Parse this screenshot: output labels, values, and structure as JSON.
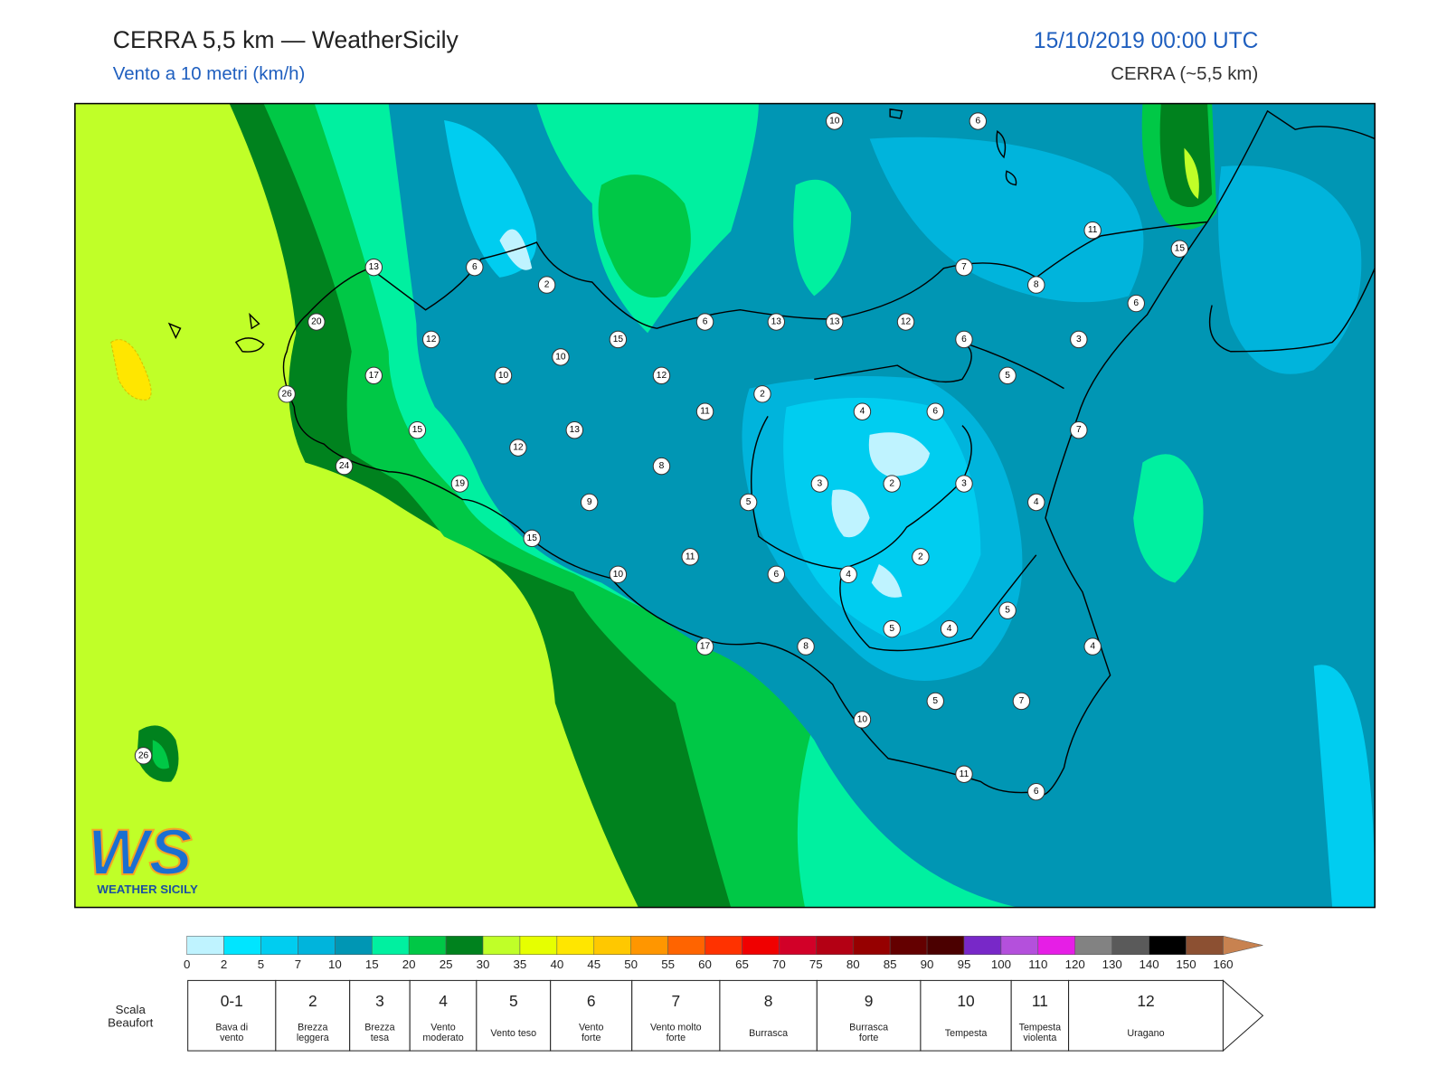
{
  "header": {
    "title": "CERRA 5,5 km — WeatherSicily",
    "subtitle": "Vento a 10 metri (km/h)",
    "datetime": "15/10/2019 00:00 UTC",
    "model": "CERRA (~5,5 km)"
  },
  "stations": [
    10,
    6,
    13,
    6,
    2,
    11,
    15,
    7,
    8,
    6,
    20,
    6,
    13,
    13,
    12,
    12,
    15,
    10,
    6,
    3,
    17,
    10,
    12,
    5,
    26,
    2,
    11,
    4,
    6,
    15,
    13,
    7,
    12,
    24,
    8,
    19,
    3,
    2,
    3,
    9,
    5,
    4,
    15,
    11,
    2,
    10,
    6,
    4,
    5,
    5,
    4,
    17,
    8,
    4,
    5,
    7,
    10,
    11,
    6,
    26
  ],
  "colorbar": {
    "ticks": [
      0,
      2,
      5,
      7,
      10,
      15,
      20,
      25,
      30,
      35,
      40,
      45,
      50,
      55,
      60,
      65,
      70,
      75,
      80,
      85,
      90,
      95,
      100,
      110,
      120,
      130,
      140,
      150,
      160
    ],
    "colors": [
      "#bff3ff",
      "#00e5ff",
      "#00cdf0",
      "#00b4dc",
      "#0096b4",
      "#00f0a0",
      "#00c846",
      "#00821e",
      "#c0ff28",
      "#e6ff00",
      "#ffe600",
      "#ffc800",
      "#ff9600",
      "#ff6400",
      "#ff3200",
      "#f00000",
      "#d20028",
      "#b40014",
      "#960000",
      "#640000",
      "#4b0000",
      "#7828c8",
      "#b450dc",
      "#e61ee6",
      "#828282",
      "#5a5a5a",
      "#000000",
      "#8c5032",
      "#c88250"
    ]
  },
  "beaufort": {
    "title": [
      "Scala",
      "Beaufort"
    ],
    "levels": [
      {
        "force": "0-1",
        "label": [
          "Bava di",
          "vento"
        ]
      },
      {
        "force": 2,
        "label": [
          "Brezza",
          "leggera"
        ]
      },
      {
        "force": 3,
        "label": [
          "Brezza",
          "tesa"
        ]
      },
      {
        "force": 4,
        "label": [
          "Vento",
          "moderato"
        ]
      },
      {
        "force": 5,
        "label": [
          "Vento teso"
        ]
      },
      {
        "force": 6,
        "label": [
          "Vento",
          "forte"
        ]
      },
      {
        "force": 7,
        "label": [
          "Vento molto",
          "forte"
        ]
      },
      {
        "force": 8,
        "label": [
          "Burrasca"
        ]
      },
      {
        "force": 9,
        "label": [
          "Burrasca",
          "forte"
        ]
      },
      {
        "force": 10,
        "label": [
          "Tempesta"
        ]
      },
      {
        "force": 11,
        "label": [
          "Tempesta",
          "violenta"
        ]
      },
      {
        "force": 12,
        "label": [
          "Uragano"
        ]
      }
    ]
  },
  "logo": {
    "mark": "WS",
    "name": "WEATHER SICILY"
  }
}
